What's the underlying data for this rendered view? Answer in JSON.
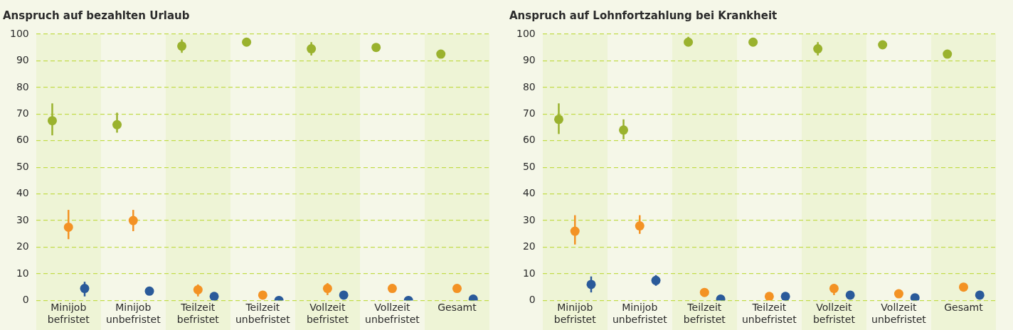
{
  "chart_data": [
    {
      "type": "scatter",
      "title": "Anspruch auf bezahlten Urlaub",
      "categories": [
        "Minijob befristet",
        "Minijob unbefristet",
        "Teilzeit befristet",
        "Teilzeit unbefristet",
        "Vollzeit befristet",
        "Vollzeit unbefristet",
        "Gesamt"
      ],
      "ylim": [
        0,
        100
      ],
      "yticks": [
        0,
        10,
        20,
        30,
        40,
        50,
        60,
        70,
        80,
        90,
        100
      ],
      "grid": "y",
      "legend": false,
      "marker": "circle",
      "series": [
        {
          "color": "#9ab22e",
          "values": [
            67.5,
            66,
            95.5,
            97,
            94.5,
            95,
            92.5
          ],
          "errors": [
            [
              62,
              74
            ],
            [
              63,
              70.5
            ],
            [
              93,
              98
            ],
            null,
            [
              92,
              97
            ],
            null,
            null
          ]
        },
        {
          "color": "#f39224",
          "values": [
            27.5,
            30,
            4,
            2,
            4.5,
            4.5,
            4.5
          ],
          "errors": [
            [
              23,
              34
            ],
            [
              26,
              34
            ],
            [
              1.5,
              6
            ],
            null,
            [
              2,
              6.5
            ],
            null,
            null
          ]
        },
        {
          "color": "#2a5a9a",
          "values": [
            4.5,
            3.5,
            1.5,
            0,
            2,
            0,
            0.5
          ],
          "errors": [
            [
              1.5,
              7
            ],
            [
              2.5,
              5
            ],
            null,
            null,
            [
              1,
              3.5
            ],
            null,
            null
          ]
        }
      ]
    },
    {
      "type": "scatter",
      "title": "Anspruch auf Lohnfortzahlung bei Krankheit",
      "categories": [
        "Minijob befristet",
        "Minijob unbefristet",
        "Teilzeit befristet",
        "Teilzeit unbefristet",
        "Vollzeit befristet",
        "Vollzeit unbefristet",
        "Gesamt"
      ],
      "ylim": [
        0,
        100
      ],
      "yticks": [
        0,
        10,
        20,
        30,
        40,
        50,
        60,
        70,
        80,
        90,
        100
      ],
      "grid": "y",
      "legend": false,
      "marker": "circle",
      "series": [
        {
          "color": "#9ab22e",
          "values": [
            68,
            64,
            97,
            97,
            94.5,
            96,
            92.5
          ],
          "errors": [
            [
              62.5,
              74
            ],
            [
              60.5,
              68
            ],
            [
              96,
              99
            ],
            null,
            [
              92,
              97
            ],
            null,
            null
          ]
        },
        {
          "color": "#f39224",
          "values": [
            26,
            28,
            3,
            1.5,
            4.5,
            2.5,
            5
          ],
          "errors": [
            [
              21,
              32
            ],
            [
              25,
              32
            ],
            [
              1.5,
              4
            ],
            null,
            [
              2,
              6
            ],
            null,
            null
          ]
        },
        {
          "color": "#2a5a9a",
          "values": [
            6,
            7.5,
            0.5,
            1.5,
            2,
            1,
            2
          ],
          "errors": [
            [
              3,
              9
            ],
            [
              5.5,
              9.5
            ],
            null,
            null,
            null,
            null,
            null
          ]
        }
      ]
    }
  ]
}
